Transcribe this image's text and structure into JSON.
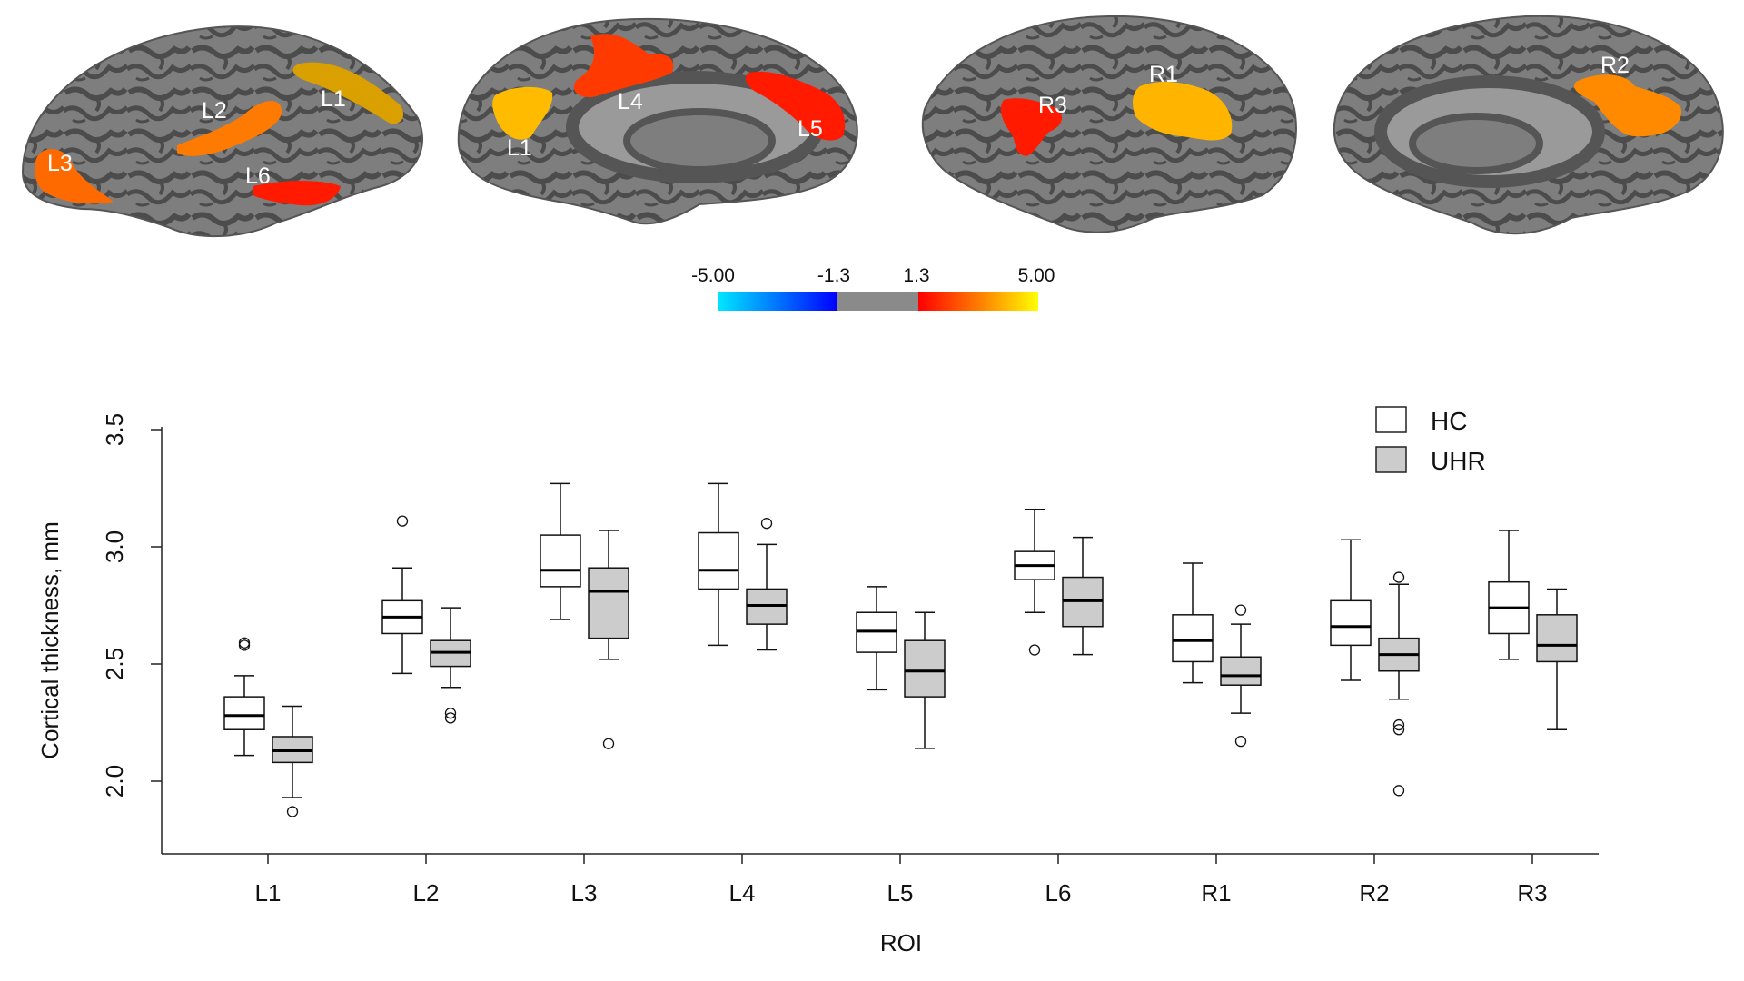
{
  "brain_panels": [
    {
      "labels": [
        "L1",
        "L2",
        "L3",
        "L6"
      ]
    },
    {
      "labels": [
        "L1",
        "L4",
        "L5"
      ]
    },
    {
      "labels": [
        "R1",
        "R3"
      ]
    },
    {
      "labels": [
        "R2"
      ]
    }
  ],
  "colorbar": {
    "ticks": [
      "-5.00",
      "-1.3",
      "1.3",
      "5.00"
    ],
    "colors": {
      "cyan": "#00e8ff",
      "blue": "#0000ff",
      "gray": "#8a8a8a",
      "red": "#ff0000",
      "yellow": "#ffff00"
    }
  },
  "chart_data": {
    "type": "boxplot",
    "xlabel": "ROI",
    "ylabel": "Cortical thickness, mm",
    "ylim": [
      1.68,
      3.5
    ],
    "yticks": [
      "2.0",
      "2.5",
      "3.0",
      "3.5"
    ],
    "categories": [
      "L1",
      "L2",
      "L3",
      "L4",
      "L5",
      "L6",
      "R1",
      "R2",
      "R3"
    ],
    "legend_position": "top-right",
    "series": [
      {
        "name": "HC",
        "color": "#ffffff",
        "boxes": [
          {
            "whisker_low": 2.11,
            "q1": 2.22,
            "median": 2.28,
            "q3": 2.36,
            "whisker_high": 2.45,
            "outliers": [
              2.58,
              2.59
            ]
          },
          {
            "whisker_low": 2.46,
            "q1": 2.63,
            "median": 2.7,
            "q3": 2.77,
            "whisker_high": 2.91,
            "outliers": [
              3.11
            ]
          },
          {
            "whisker_low": 2.69,
            "q1": 2.83,
            "median": 2.9,
            "q3": 3.05,
            "whisker_high": 3.27,
            "outliers": []
          },
          {
            "whisker_low": 2.58,
            "q1": 2.82,
            "median": 2.9,
            "q3": 3.06,
            "whisker_high": 3.27,
            "outliers": []
          },
          {
            "whisker_low": 2.39,
            "q1": 2.55,
            "median": 2.64,
            "q3": 2.72,
            "whisker_high": 2.83,
            "outliers": []
          },
          {
            "whisker_low": 2.72,
            "q1": 2.86,
            "median": 2.92,
            "q3": 2.98,
            "whisker_high": 3.16,
            "outliers": [
              2.56
            ]
          },
          {
            "whisker_low": 2.42,
            "q1": 2.51,
            "median": 2.6,
            "q3": 2.71,
            "whisker_high": 2.93,
            "outliers": []
          },
          {
            "whisker_low": 2.43,
            "q1": 2.58,
            "median": 2.66,
            "q3": 2.77,
            "whisker_high": 3.03,
            "outliers": []
          },
          {
            "whisker_low": 2.52,
            "q1": 2.63,
            "median": 2.74,
            "q3": 2.85,
            "whisker_high": 3.07,
            "outliers": []
          }
        ]
      },
      {
        "name": "UHR",
        "color": "#cccccc",
        "boxes": [
          {
            "whisker_low": 1.93,
            "q1": 2.08,
            "median": 2.13,
            "q3": 2.19,
            "whisker_high": 2.32,
            "outliers": [
              1.87
            ]
          },
          {
            "whisker_low": 2.4,
            "q1": 2.49,
            "median": 2.55,
            "q3": 2.6,
            "whisker_high": 2.74,
            "outliers": [
              2.27,
              2.29
            ]
          },
          {
            "whisker_low": 2.52,
            "q1": 2.61,
            "median": 2.81,
            "q3": 2.91,
            "whisker_high": 3.07,
            "outliers": [
              2.16
            ]
          },
          {
            "whisker_low": 2.56,
            "q1": 2.67,
            "median": 2.75,
            "q3": 2.82,
            "whisker_high": 3.01,
            "outliers": [
              3.1
            ]
          },
          {
            "whisker_low": 2.14,
            "q1": 2.36,
            "median": 2.47,
            "q3": 2.6,
            "whisker_high": 2.72,
            "outliers": []
          },
          {
            "whisker_low": 2.54,
            "q1": 2.66,
            "median": 2.77,
            "q3": 2.87,
            "whisker_high": 3.04,
            "outliers": []
          },
          {
            "whisker_low": 2.29,
            "q1": 2.41,
            "median": 2.45,
            "q3": 2.53,
            "whisker_high": 2.67,
            "outliers": [
              2.17,
              2.73
            ]
          },
          {
            "whisker_low": 2.35,
            "q1": 2.47,
            "median": 2.54,
            "q3": 2.61,
            "whisker_high": 2.84,
            "outliers": [
              1.96,
              2.22,
              2.24,
              2.87
            ]
          },
          {
            "whisker_low": 2.22,
            "q1": 2.51,
            "median": 2.58,
            "q3": 2.71,
            "whisker_high": 2.82,
            "outliers": []
          }
        ]
      }
    ]
  }
}
